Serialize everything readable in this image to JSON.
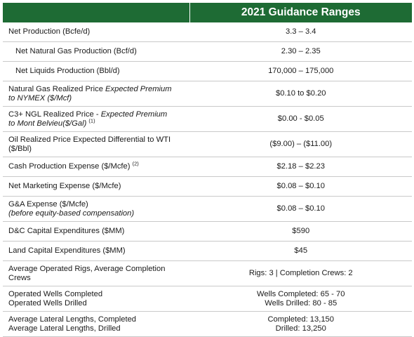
{
  "header": {
    "label_col": "",
    "value_col": "2021 Guidance Ranges"
  },
  "rows": [
    {
      "label": "Net Production (Bcfe/d)",
      "value": "3.3 – 3.4"
    },
    {
      "label": "Net Natural Gas Production (Bcf/d)",
      "value": "2.30 – 2.35"
    },
    {
      "label": "Net Liquids Production (Bbl/d)",
      "value": "170,000 – 175,000"
    },
    {
      "label": "Natural Gas Realized Price",
      "label_italic": "Expected Premium",
      "label_line2_italic": "to NYMEX ($/Mcf)",
      "value": "$0.10 to $0.20"
    },
    {
      "label": "C3+ NGL Realized Price - ",
      "label_italic": "Expected Premium",
      "label_line2_italic": "to Mont Belvieu($/Gal)",
      "footnote": "(1)",
      "value": "$0.00 - $0.05"
    },
    {
      "label": "Oil Realized Price Expected Differential to WTI",
      "label_line2": "($/Bbl)",
      "value": "($9.00) – ($11.00)"
    },
    {
      "label": "Cash Production Expense ($/Mcfe)",
      "footnote": "(2)",
      "value": "$2.18 – $2.23"
    },
    {
      "label": "Net Marketing Expense ($/Mcfe)",
      "value": "$0.08 – $0.10"
    },
    {
      "label": "G&A Expense ($/Mcfe)",
      "label_line2_italic": "(before equity-based compensation)",
      "value": "$0.08 – $0.10"
    },
    {
      "label": "D&C Capital Expenditures ($MM)",
      "value": "$590"
    },
    {
      "label": "Land Capital Expenditures ($MM)",
      "value": "$45"
    },
    {
      "label": "Average Operated Rigs, Average Completion",
      "label_line2": "Crews",
      "value": "Rigs: 3 | Completion Crews: 2"
    },
    {
      "label": "Operated Wells Completed",
      "label_line2": "Operated Wells Drilled",
      "value": "Wells Completed: 65 - 70",
      "value_line2": "Wells Drilled: 80 - 85"
    },
    {
      "label": "Average Lateral Lengths, Completed",
      "label_line2": "Average Lateral Lengths, Drilled",
      "value": "Completed: 13,150",
      "value_line2": "Drilled: 13,250"
    }
  ]
}
